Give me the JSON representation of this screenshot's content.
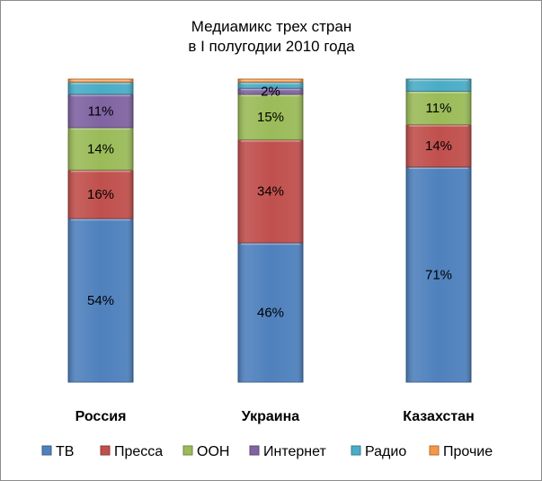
{
  "chart_data": {
    "type": "bar",
    "stacked": true,
    "percent": true,
    "title": [
      "Медиамикс трех стран",
      "в I полугодии 2010 года"
    ],
    "categories": [
      "Россия",
      "Украина",
      "Казахстан"
    ],
    "ylim": [
      0,
      100
    ],
    "grid": false,
    "legend_position": "bottom",
    "series": [
      {
        "name": "ТВ",
        "color": "#4f81bd",
        "values": [
          54,
          46,
          71
        ],
        "labels": [
          "54%",
          "46%",
          "71%"
        ]
      },
      {
        "name": "Пресса",
        "color": "#c0504d",
        "values": [
          16,
          34,
          14
        ],
        "labels": [
          "16%",
          "34%",
          "14%"
        ]
      },
      {
        "name": "OOH",
        "color": "#9bbb59",
        "values": [
          14,
          15,
          11
        ],
        "labels": [
          "14%",
          "15%",
          "11%"
        ]
      },
      {
        "name": "Интернет",
        "color": "#8064a2",
        "values": [
          11,
          2,
          0
        ],
        "labels": [
          "11%",
          "2%",
          ""
        ]
      },
      {
        "name": "Радио",
        "color": "#4bacc6",
        "values": [
          4,
          2,
          4
        ],
        "labels": [
          "",
          "",
          ""
        ]
      },
      {
        "name": "Прочие",
        "color": "#f79646",
        "values": [
          1,
          1,
          0
        ],
        "labels": [
          "",
          "",
          ""
        ]
      }
    ]
  }
}
